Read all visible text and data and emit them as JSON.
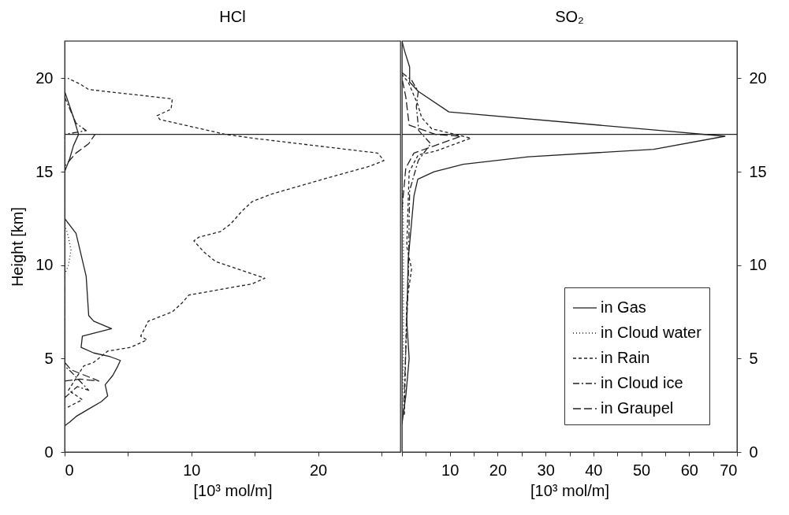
{
  "chart_data": [
    {
      "type": "line",
      "title": "HCl",
      "xlabel": "[10³ mol/m]",
      "ylabel": "Height [km]",
      "xlim": [
        0,
        26.5
      ],
      "xticks": [
        0,
        {
          "value": 5,
          "label": null
        },
        10,
        {
          "value": 15,
          "label": null
        },
        20,
        {
          "value": 25,
          "label": null
        }
      ],
      "ylim": [
        0,
        22
      ],
      "yticks": [
        0,
        5,
        10,
        15,
        20
      ],
      "grid": false,
      "legend": false,
      "ref_lines": [
        {
          "axis": "y",
          "value": 17,
          "color": "#222222"
        }
      ],
      "series": [
        {
          "color": "#222222",
          "line_style": "solid",
          "x": [
            0,
            0.4,
            0.9,
            1.9,
            2.9,
            3.4,
            3.2,
            3.8,
            4.2,
            4.4,
            3.6,
            2.3,
            1.3,
            1.4,
            3.7,
            2.3,
            1.9,
            1.7,
            0.9,
            0,
            0,
            0.4,
            0.7,
            1.1,
            0.7,
            0
          ],
          "values": [
            1.4,
            1.6,
            1.9,
            2.3,
            2.7,
            3.0,
            3.6,
            4.1,
            4.6,
            4.9,
            5.1,
            5.3,
            5.6,
            6.2,
            6.6,
            7.0,
            7.3,
            9.4,
            11.7,
            12.5,
            15.0,
            15.7,
            16.4,
            17.0,
            17.9,
            19.3
          ]
        },
        {
          "color": "#222222",
          "line_style": "dotted",
          "x": [
            0,
            0.3,
            0.5,
            0.3,
            0
          ],
          "values": [
            9.5,
            10.0,
            10.8,
            11.5,
            12.2
          ]
        },
        {
          "color": "#222222",
          "line_style": "dashed",
          "x": [
            0.25,
            1.4,
            0.3,
            1.5,
            2.3,
            3.4,
            5.2,
            6.5,
            6.0,
            6.6,
            8.5,
            9.3,
            9.8,
            14.8,
            15.8,
            11.9,
            11.0,
            10.2,
            10.6,
            12.3,
            13.1,
            14.0,
            14.8,
            16.3,
            20.4,
            24.1,
            25.2,
            24.7,
            14.8,
            12.7,
            7.5,
            7.3,
            8.4,
            8.5,
            1.9,
            1.2,
            0.25
          ],
          "values": [
            2.4,
            2.8,
            3.3,
            4.6,
            4.8,
            5.4,
            5.6,
            6.0,
            6.2,
            7.0,
            7.5,
            8.0,
            8.4,
            9.0,
            9.3,
            10.2,
            10.7,
            11.3,
            11.5,
            11.8,
            12.2,
            12.9,
            13.4,
            13.8,
            14.6,
            15.3,
            15.6,
            16.0,
            16.8,
            17.0,
            17.8,
            18.0,
            18.35,
            18.9,
            19.4,
            19.7,
            20.0
          ]
        },
        {
          "color": "#222222",
          "line_style": "dashed",
          "x": [
            0,
            1.0,
            1.9,
            0.5,
            0,
            0,
            1.7,
            0.9,
            0.25,
            0
          ],
          "values": [
            2.9,
            3.5,
            3.3,
            4.3,
            4.6,
            17.0,
            17.2,
            17.6,
            18.6,
            19.0
          ]
        },
        {
          "color": "#222222",
          "line_style": "dashed",
          "x": [
            0,
            1.2,
            2.7,
            0.5,
            0,
            0,
            0.9,
            1.9,
            2.4
          ],
          "values": [
            3.8,
            3.9,
            3.8,
            4.4,
            4.8,
            15.3,
            16.0,
            16.5,
            17.0
          ]
        }
      ]
    },
    {
      "type": "line",
      "title": "SO₂",
      "xlabel": "[10³ mol/m]",
      "xlim": [
        0,
        70
      ],
      "xticks": [
        {
          "value": 0,
          "label": null
        },
        {
          "value": 5,
          "label": null
        },
        10,
        {
          "value": 15,
          "label": null
        },
        20,
        {
          "value": 25,
          "label": null
        },
        30,
        {
          "value": 35,
          "label": null
        },
        40,
        {
          "value": 45,
          "label": null
        },
        50,
        {
          "value": 55,
          "label": null
        },
        60,
        {
          "value": 65,
          "label": null
        },
        70
      ],
      "y2lim": [
        0,
        22
      ],
      "y2ticks": [
        0,
        5,
        10,
        15,
        20
      ],
      "grid": false,
      "legend": "bottom right",
      "ref_lines": [
        {
          "axis": "y2",
          "value": 17,
          "color": "#222222"
        }
      ],
      "series": [
        {
          "name": "in Gas",
          "color": "#222222",
          "line_style": "solid",
          "axis": "y2",
          "x": [
            0,
            0.8,
            1.5,
            1.0,
            1.3,
            2.5,
            3.3,
            6.7,
            12.8,
            26.4,
            52.6,
            67.5,
            54.3,
            9.8,
            3.4,
            1.6,
            1.6,
            0.5,
            0
          ],
          "values": [
            1.5,
            3.0,
            5.0,
            7.0,
            10.3,
            13.7,
            14.6,
            15.0,
            15.4,
            15.8,
            16.2,
            16.9,
            17.2,
            18.2,
            19.3,
            19.8,
            20.6,
            21.5,
            22
          ]
        },
        {
          "name": "in Cloud water",
          "color": "#222222",
          "line_style": "dotted",
          "axis": "y2",
          "x": [
            0,
            0.3,
            0.3,
            0
          ],
          "values": [
            2,
            5,
            12,
            15
          ]
        },
        {
          "name": "in Rain",
          "color": "#222222",
          "line_style": "dashed",
          "axis": "y2",
          "x": [
            0.5,
            1.0,
            2.0,
            1.0,
            1.5,
            3.4,
            7.0,
            14.4,
            6.2,
            4.1,
            3.3,
            1.3,
            0
          ],
          "values": [
            2.0,
            8.0,
            9.8,
            11,
            15.0,
            15.9,
            16.1,
            16.8,
            17.3,
            17.9,
            18.6,
            19.8,
            20.2
          ]
        },
        {
          "name": "in Cloud ice",
          "color": "#222222",
          "line_style": "dashed",
          "axis": "y2",
          "x": [
            0.3,
            1.3,
            1.6,
            3.4,
            6,
            3.5,
            3.0,
            3.4,
            2.0,
            0
          ],
          "values": [
            2.0,
            9.0,
            14,
            15.6,
            16.5,
            17.2,
            18.5,
            19.3,
            19.9,
            20.3
          ]
        },
        {
          "name": "in Graupel",
          "color": "#222222",
          "line_style": "dashed",
          "axis": "y2",
          "x": [
            0,
            0.8,
            2.5,
            12.3,
            7,
            1.5,
            0.8,
            0
          ],
          "values": [
            13,
            15.2,
            16.0,
            16.9,
            17.0,
            17.5,
            19.0,
            20.0
          ]
        }
      ]
    }
  ]
}
